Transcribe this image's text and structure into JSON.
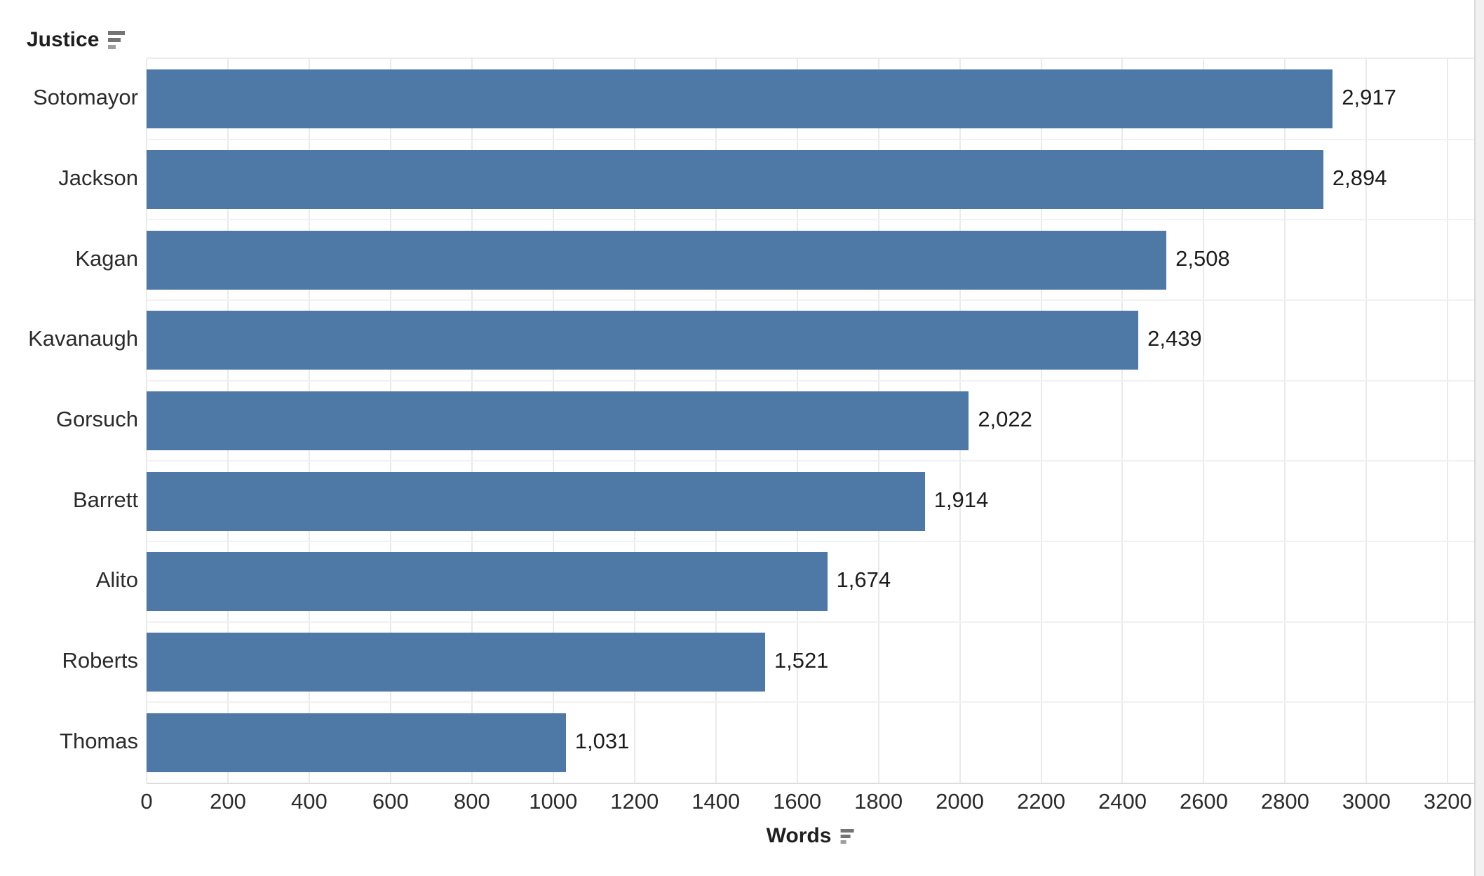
{
  "row_header": {
    "label": "Justice",
    "sort_icon": "sort-descending-icon"
  },
  "x_axis": {
    "label": "Words",
    "sort_icon": "sort-descending-icon",
    "tick_labels": [
      "0",
      "200",
      "400",
      "600",
      "800",
      "1000",
      "1200",
      "1400",
      "1600",
      "1800",
      "2000",
      "2200",
      "2400",
      "2600",
      "2800",
      "3000",
      "3200"
    ]
  },
  "chart_data": {
    "type": "bar",
    "orientation": "horizontal",
    "title": "",
    "xlabel": "Words",
    "ylabel": "Justice",
    "categories": [
      "Sotomayor",
      "Jackson",
      "Kagan",
      "Kavanaugh",
      "Gorsuch",
      "Barrett",
      "Alito",
      "Roberts",
      "Thomas"
    ],
    "values": [
      2917,
      2894,
      2508,
      2439,
      2022,
      1914,
      1674,
      1521,
      1031
    ],
    "value_labels": [
      "2,917",
      "2,894",
      "2,508",
      "2,439",
      "2,022",
      "1,914",
      "1,674",
      "1,521",
      "1,031"
    ],
    "xlim": [
      0,
      3265
    ],
    "xticks": [
      0,
      200,
      400,
      600,
      800,
      1000,
      1200,
      1400,
      1600,
      1800,
      2000,
      2200,
      2400,
      2600,
      2800,
      3000,
      3200
    ],
    "grid": true,
    "legend": "none",
    "sort": "descending",
    "bar_color": "#4e79a7"
  },
  "colors": {
    "bar": "#4e79a7",
    "gridline": "#eaeaea",
    "text": "#2b2b2b"
  }
}
